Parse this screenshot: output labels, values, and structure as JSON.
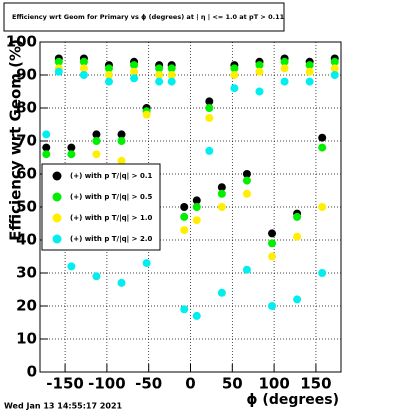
{
  "chart_data": {
    "type": "scatter",
    "title": "Efficiency wrt Geom for Primary vs ϕ (degrees) at | η | <= 1.0 at pT > 0.11",
    "x_label": "ϕ (degrees)",
    "y_label": "Efficiency wrt Geom (%)",
    "timestamp": "Wed Jan 13 14:55:17 2021",
    "xlim": [
      -180,
      180
    ],
    "ylim": [
      0,
      100
    ],
    "xticks": [
      -150,
      -100,
      -50,
      0,
      50,
      100,
      150
    ],
    "yticks": [
      0,
      10,
      20,
      30,
      40,
      50,
      60,
      70,
      80,
      90,
      100
    ],
    "grid": true,
    "legend": "left",
    "x": [
      -172.5,
      -157.5,
      -142.5,
      -127.5,
      -112.5,
      -97.5,
      -82.5,
      -67.5,
      -52.5,
      -37.5,
      -22.5,
      -7.5,
      7.5,
      22.5,
      37.5,
      52.5,
      67.5,
      82.5,
      97.5,
      112.5,
      127.5,
      142.5,
      157.5,
      172.5
    ],
    "series": [
      {
        "name": "(+) with p T/|q| > 0.1",
        "color": "#000000",
        "values": [
          68,
          95,
          68,
          95,
          72,
          93,
          72,
          94,
          80,
          93,
          93,
          50,
          52,
          82,
          56,
          93,
          60,
          94,
          42,
          95,
          48,
          94,
          71,
          95
        ]
      },
      {
        "name": "(+) with p T/|q| > 0.5",
        "color": "#00ee00",
        "values": [
          66,
          94,
          66,
          94,
          70,
          92,
          70,
          93,
          79,
          92,
          92,
          47,
          50,
          80,
          54,
          92,
          58,
          93,
          39,
          94,
          47,
          93,
          68,
          94
        ]
      },
      {
        "name": "(+) with p T/|q| > 1.0",
        "color": "#ffee00",
        "values": [
          62,
          92,
          61,
          92,
          66,
          90,
          64,
          91,
          78,
          90,
          90,
          43,
          46,
          77,
          50,
          90,
          54,
          91,
          35,
          92,
          41,
          91,
          50,
          92
        ]
      },
      {
        "name": "(+) with p T/|q| > 2.0",
        "color": "#00eeee",
        "values": [
          72,
          91,
          32,
          90,
          29,
          88,
          27,
          89,
          33,
          88,
          88,
          19,
          17,
          67,
          24,
          86,
          31,
          85,
          20,
          88,
          22,
          88,
          30,
          90
        ]
      }
    ]
  }
}
